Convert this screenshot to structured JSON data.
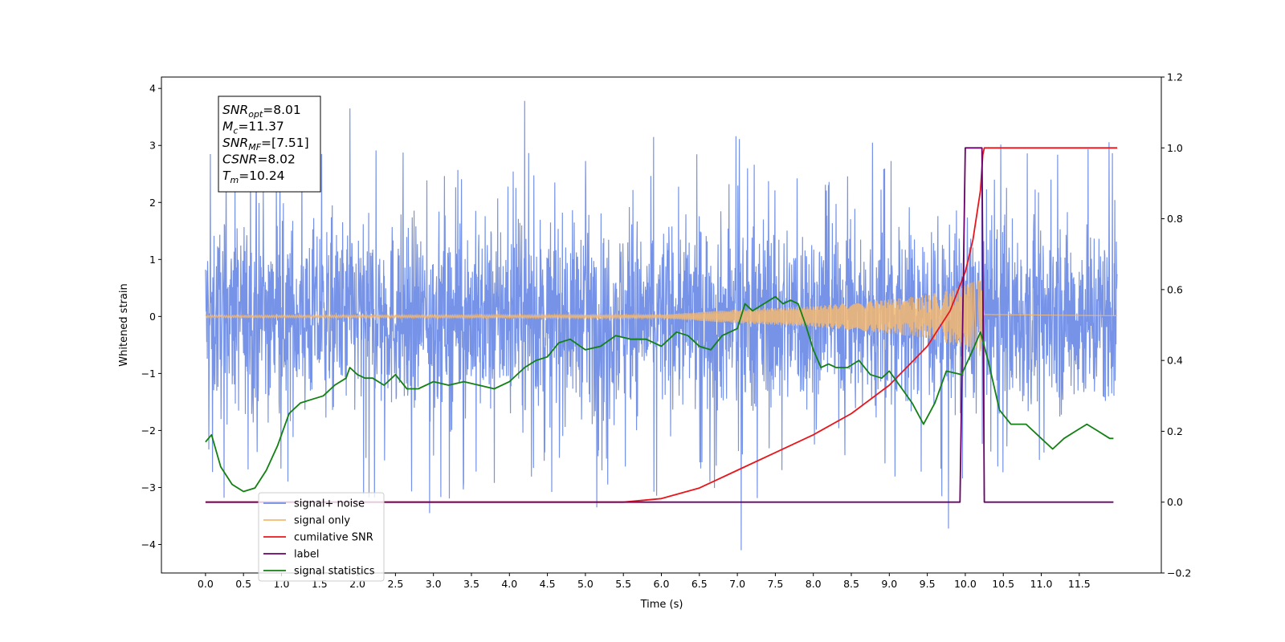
{
  "chart_data": {
    "type": "line",
    "xlabel": "Time (s)",
    "ylabel_left": "Whitened strain",
    "ylabel_right": "",
    "xlim": [
      -0.58,
      12.58
    ],
    "ylim_left": [
      -4.5,
      4.2
    ],
    "ylim_right": [
      -0.2,
      1.2
    ],
    "x_ticks": [
      "0.0",
      "0.5",
      "1.0",
      "1.5",
      "2.0",
      "2.5",
      "3.0",
      "3.5",
      "4.0",
      "4.5",
      "5.0",
      "5.5",
      "6.0",
      "6.5",
      "7.0",
      "7.5",
      "8.0",
      "8.5",
      "9.0",
      "9.5",
      "10.0",
      "10.5",
      "11.0",
      "11.5"
    ],
    "y_ticks_left": [
      "−4",
      "−3",
      "−2",
      "−1",
      "0",
      "1",
      "2",
      "3",
      "4"
    ],
    "y_ticks_right": [
      "−0.2",
      "0.0",
      "0.2",
      "0.4",
      "0.6",
      "0.8",
      "1.0",
      "1.2"
    ],
    "grid": false,
    "legend_position": "lower-left",
    "annotation": {
      "lines": [
        {
          "sym": "SNR",
          "sub": "opt",
          "val": "=8.01"
        },
        {
          "sym": "M",
          "sub": "c",
          "val": "=11.37"
        },
        {
          "sym": "SNR",
          "sub": "MF",
          "val": "=[7.51]"
        },
        {
          "sym": "CSNR",
          "sub": "",
          "val": "=8.02"
        },
        {
          "sym": "T",
          "sub": "m",
          "val": "=10.24"
        }
      ]
    },
    "series": [
      {
        "name": "signal+ noise",
        "axis": "left",
        "color": "#6f8de6",
        "kind": "noise",
        "x_range": [
          0,
          12
        ],
        "typical_range": [
          -1.3,
          1.3
        ],
        "extremes": [
          [
            1.9,
            3.65
          ],
          [
            4.2,
            3.78
          ],
          [
            7.05,
            -4.1
          ],
          [
            9.78,
            -3.72
          ],
          [
            2.95,
            -3.45
          ],
          [
            5.15,
            -3.35
          ]
        ]
      },
      {
        "name": "signal only",
        "axis": "left",
        "color": "#f5b971",
        "kind": "chirp",
        "x_range": [
          0,
          12
        ],
        "merger_time": 10.24,
        "envelope": [
          [
            0,
            0.02
          ],
          [
            6.0,
            0.03
          ],
          [
            7.0,
            0.12
          ],
          [
            8.0,
            0.18
          ],
          [
            9.0,
            0.3
          ],
          [
            9.5,
            0.38
          ],
          [
            10.0,
            0.55
          ],
          [
            10.2,
            0.7
          ],
          [
            10.25,
            0.05
          ],
          [
            12,
            0.02
          ]
        ]
      },
      {
        "name": "cumilative SNR",
        "axis": "right",
        "color": "#e8161b",
        "x": [
          0,
          5.5,
          6.0,
          6.5,
          7.0,
          7.5,
          8.0,
          8.5,
          9.0,
          9.5,
          9.8,
          10.0,
          10.1,
          10.2,
          10.23,
          10.25,
          12.0
        ],
        "values": [
          0,
          0,
          0.01,
          0.04,
          0.09,
          0.14,
          0.19,
          0.25,
          0.33,
          0.44,
          0.54,
          0.65,
          0.74,
          0.88,
          0.98,
          1.0,
          1.0
        ]
      },
      {
        "name": "label",
        "axis": "right",
        "color": "#6a006a",
        "x": [
          0,
          9.93,
          10.0,
          10.22,
          10.25,
          11.95
        ],
        "values": [
          0,
          0,
          1,
          1,
          0,
          0
        ]
      },
      {
        "name": "signal statistics",
        "axis": "right",
        "color": "#138013",
        "x": [
          0,
          0.08,
          0.2,
          0.35,
          0.5,
          0.65,
          0.8,
          0.95,
          1.1,
          1.25,
          1.4,
          1.55,
          1.7,
          1.85,
          1.9,
          2.0,
          2.1,
          2.2,
          2.35,
          2.5,
          2.65,
          2.8,
          3.0,
          3.2,
          3.4,
          3.6,
          3.8,
          4.0,
          4.2,
          4.35,
          4.5,
          4.65,
          4.8,
          5.0,
          5.2,
          5.4,
          5.6,
          5.8,
          6.0,
          6.2,
          6.35,
          6.5,
          6.65,
          6.8,
          7.0,
          7.1,
          7.2,
          7.35,
          7.5,
          7.6,
          7.7,
          7.8,
          7.9,
          8.0,
          8.1,
          8.2,
          8.3,
          8.45,
          8.6,
          8.75,
          8.9,
          9.0,
          9.1,
          9.3,
          9.45,
          9.6,
          9.75,
          9.95,
          10.1,
          10.2,
          10.3,
          10.45,
          10.6,
          10.8,
          11.0,
          11.15,
          11.3,
          11.45,
          11.6,
          11.75,
          11.9,
          11.95
        ],
        "values": [
          0.17,
          0.19,
          0.1,
          0.05,
          0.03,
          0.04,
          0.09,
          0.16,
          0.25,
          0.28,
          0.29,
          0.3,
          0.33,
          0.35,
          0.38,
          0.36,
          0.35,
          0.35,
          0.33,
          0.36,
          0.32,
          0.32,
          0.34,
          0.33,
          0.34,
          0.33,
          0.32,
          0.34,
          0.38,
          0.4,
          0.41,
          0.45,
          0.46,
          0.43,
          0.44,
          0.47,
          0.46,
          0.46,
          0.44,
          0.48,
          0.47,
          0.44,
          0.43,
          0.47,
          0.49,
          0.56,
          0.54,
          0.56,
          0.58,
          0.56,
          0.57,
          0.56,
          0.5,
          0.43,
          0.38,
          0.39,
          0.38,
          0.38,
          0.4,
          0.36,
          0.35,
          0.37,
          0.34,
          0.28,
          0.22,
          0.28,
          0.37,
          0.36,
          0.43,
          0.48,
          0.4,
          0.26,
          0.22,
          0.22,
          0.18,
          0.15,
          0.18,
          0.2,
          0.22,
          0.2,
          0.18,
          0.18
        ]
      }
    ]
  }
}
